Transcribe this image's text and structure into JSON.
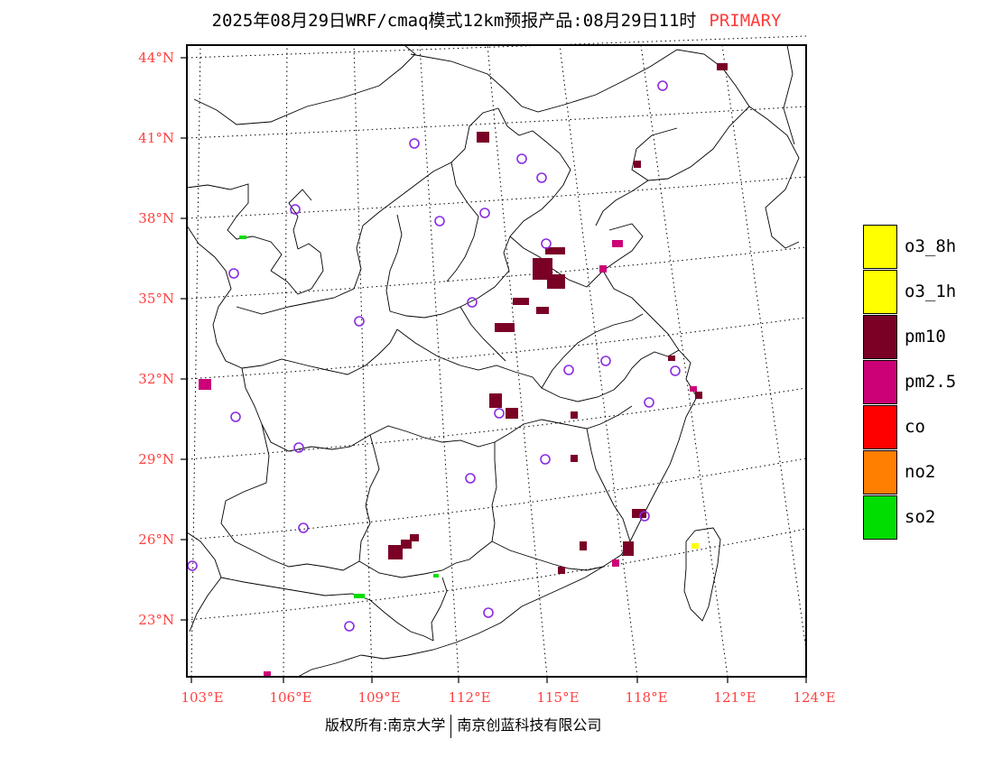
{
  "title": {
    "main": "2025年08月29日WRF/cmaq模式12km预报产品:08月29日11时",
    "tag": "PRIMARY"
  },
  "colors": {
    "o3_8h": "#ffff00",
    "o3_1h": "#ffff00",
    "pm10": "#7a0026",
    "pm2_5": "#cc0077",
    "co": "#ff0000",
    "no2": "#ff7f00",
    "so2": "#00dd00",
    "station": "#8a2be2",
    "label": "#ff4040"
  },
  "axes": {
    "lat_labels": [
      "44°N",
      "41°N",
      "38°N",
      "35°N",
      "32°N",
      "29°N",
      "26°N",
      "23°N"
    ],
    "lon_labels": [
      "103°E",
      "106°E",
      "109°E",
      "112°E",
      "115°E",
      "118°E",
      "121°E",
      "124°E"
    ]
  },
  "legend": [
    {
      "label": "o3_8h",
      "color": "#ffff00"
    },
    {
      "label": "o3_1h",
      "color": "#ffff00"
    },
    {
      "label": "pm10",
      "color": "#7a0026"
    },
    {
      "label": "pm2.5",
      "color": "#cc0077"
    },
    {
      "label": "co",
      "color": "#ff0000"
    },
    {
      "label": "no2",
      "color": "#ff7f00"
    },
    {
      "label": "so2",
      "color": "#00dd00"
    }
  ],
  "footer": {
    "left": "版权所有:南京大学",
    "right": "南京创蓝科技有限公司"
  }
}
